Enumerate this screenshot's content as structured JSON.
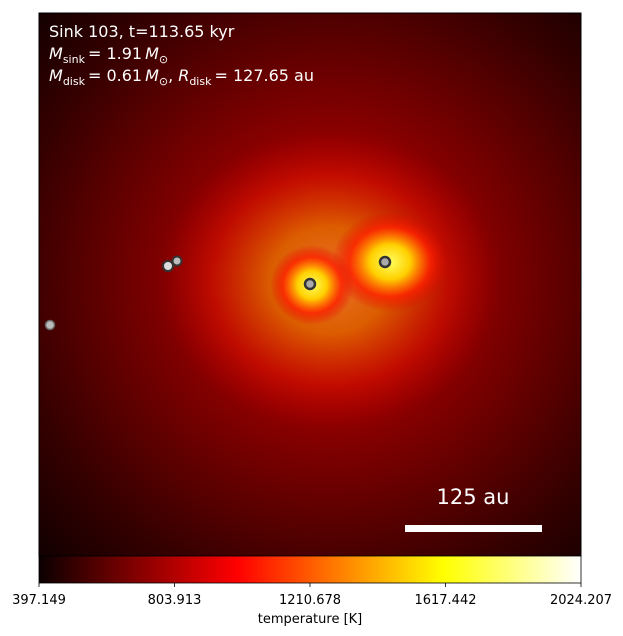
{
  "chart_data": {
    "type": "heatmap",
    "title": "Sink 103, t=113.65 kyr",
    "annotations": [
      [
        "M",
        "sink",
        "= 1.91",
        "M",
        "⊙"
      ],
      [
        "M",
        "disk",
        "= 0.61",
        "M",
        "⊙",
        ",",
        "R",
        "disk",
        "= 127.65 au"
      ]
    ],
    "scale_bar": "125 au",
    "colorbar": {
      "label": "temperature [K]",
      "lim": [
        397.149,
        2024.207
      ],
      "ticks": [
        397.149,
        803.913,
        1210.678,
        1617.442,
        2024.207
      ],
      "colormap": "hot"
    }
  }
}
